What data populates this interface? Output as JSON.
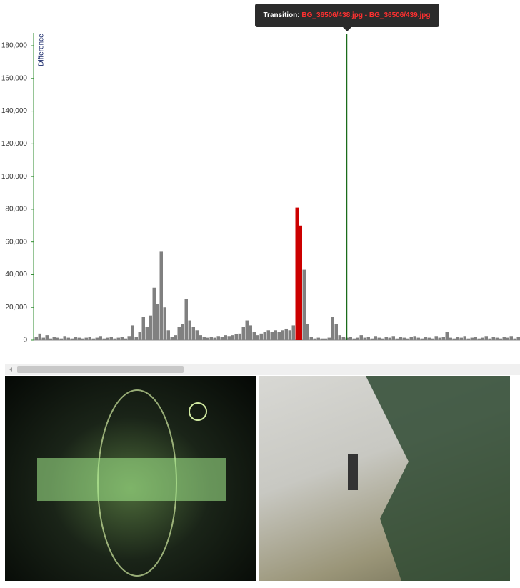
{
  "chart_data": {
    "type": "bar",
    "y_label": "Difference",
    "tooltip": {
      "label": "Transition:",
      "text": "BG_36506/438.jpg - BG_36506/439.jpg"
    },
    "values": [
      2000,
      4000,
      1500,
      3000,
      1000,
      2000,
      1500,
      1000,
      2500,
      1500,
      1000,
      2000,
      1500,
      1000,
      1500,
      2000,
      1000,
      1500,
      2500,
      1000,
      1500,
      2000,
      1000,
      1500,
      2000,
      1000,
      2500,
      9000,
      2000,
      5000,
      14000,
      8000,
      15000,
      32000,
      22000,
      54000,
      20000,
      6000,
      2000,
      3000,
      8000,
      10000,
      25000,
      12000,
      8000,
      6000,
      3000,
      2000,
      1500,
      2000,
      1500,
      2500,
      2000,
      3000,
      2500,
      3000,
      3500,
      4000,
      8000,
      12000,
      9000,
      5000,
      3000,
      4000,
      5000,
      6000,
      5000,
      6000,
      5000,
      6000,
      7000,
      6000,
      9000,
      81000,
      70000,
      43000,
      10000,
      2000,
      1000,
      1500,
      1000,
      1000,
      1500,
      14000,
      10000,
      3000,
      2000,
      1500,
      2000,
      1000,
      1500,
      3000,
      1500,
      2000,
      1000,
      2500,
      1500,
      1000,
      2000,
      1500,
      2500,
      1000,
      2000,
      1500,
      1000,
      2000,
      2500,
      1500,
      1000,
      2000,
      1500,
      1000,
      2500,
      1500,
      2000,
      5000,
      1500,
      1000,
      2000,
      1500,
      2500,
      1000,
      1500,
      2000,
      1000,
      1500,
      2500,
      1000,
      2000,
      1500,
      1000,
      2000,
      1500,
      2500,
      1000,
      2000
    ],
    "color": "#808080",
    "highlight": {
      "indices": [
        73,
        74
      ],
      "color": "#cc0000"
    },
    "selected": {
      "index": 87,
      "color": "#1a6b1a"
    },
    "axis_color": "#2e8b2e",
    "ylim": [
      0,
      187000
    ],
    "yticks": [
      {
        "value": 0,
        "label": "0"
      },
      {
        "value": 20000,
        "label": "20,000"
      },
      {
        "value": 40000,
        "label": "40,000"
      },
      {
        "value": 60000,
        "label": "60,000"
      },
      {
        "value": 80000,
        "label": "80,000"
      },
      {
        "value": 100000,
        "label": "100,000"
      },
      {
        "value": 120000,
        "label": "120,000"
      },
      {
        "value": 140000,
        "label": "140,000"
      },
      {
        "value": 160000,
        "label": "160,000"
      },
      {
        "value": 180000,
        "label": "180,000"
      }
    ]
  }
}
